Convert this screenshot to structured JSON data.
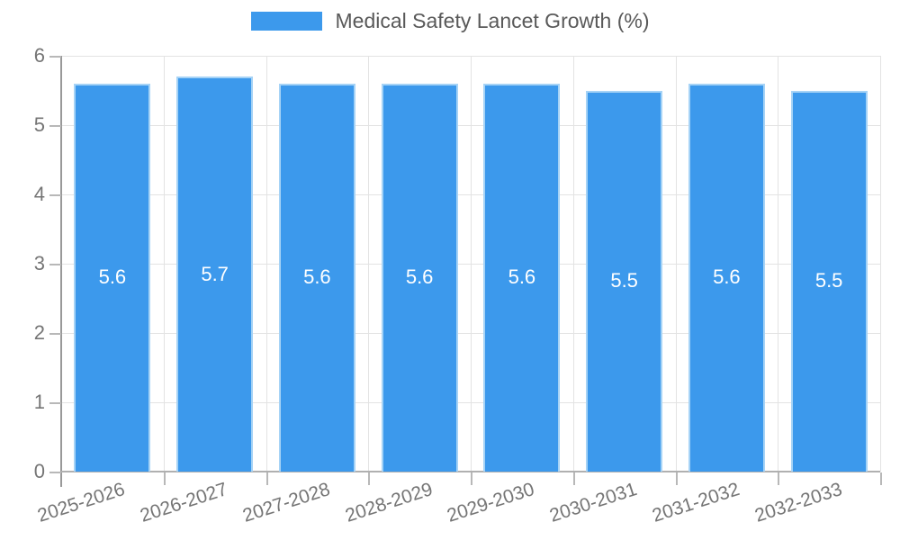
{
  "legend": {
    "items": [
      {
        "label": "Medical Safety Lancet Growth (%)",
        "color": "#3C99EC"
      }
    ]
  },
  "chart_data": {
    "type": "bar",
    "title": "Medical Safety Lancet Growth (%)",
    "categories": [
      "2025-2026",
      "2026-2027",
      "2027-2028",
      "2028-2029",
      "2029-2030",
      "2030-2031",
      "2031-2032",
      "2032-2033"
    ],
    "values": [
      5.6,
      5.7,
      5.6,
      5.6,
      5.6,
      5.5,
      5.6,
      5.5
    ],
    "value_labels": [
      "5.6",
      "5.7",
      "5.6",
      "5.6",
      "5.6",
      "5.5",
      "5.6",
      "5.5"
    ],
    "xlabel": "",
    "ylabel": "",
    "ylim": [
      0,
      6
    ],
    "yticks": [
      "0",
      "1",
      "2",
      "3",
      "4",
      "5",
      "6"
    ],
    "grid": true,
    "legend_position": "top",
    "value_label_position": "center-of-bar",
    "x_label_rotation_deg": -18,
    "colors": {
      "bar_fill": "#3C99EC",
      "bar_border": "#A6D3F6",
      "grid_line": "#E3E3E3",
      "y_axis_line": "#999999",
      "baseline": "#B0B0B0",
      "tick_mark": "#B8B8B8",
      "axis_text": "#757575",
      "legend_text": "#595959",
      "value_label_text": "#FFFFFF"
    }
  }
}
